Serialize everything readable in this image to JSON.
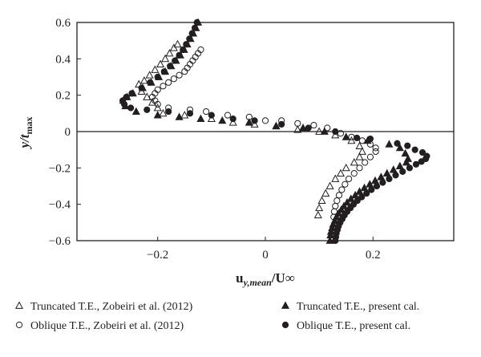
{
  "chart_data": {
    "type": "scatter",
    "xlabel": "u",
    "xlabel_sub": "y,mean",
    "xlabel_tail": "/U",
    "xlabel_inf": "∞",
    "ylabel": "y/t",
    "ylabel_sub": "max",
    "xlim": [
      -0.35,
      0.35
    ],
    "ylim": [
      -0.6,
      0.6
    ],
    "x_ticks": [
      {
        "v": -0.2,
        "label": "−0.2"
      },
      {
        "v": 0,
        "label": "0"
      },
      {
        "v": 0.2,
        "label": "0.2"
      }
    ],
    "y_ticks": [
      {
        "v": 0.6,
        "label": "0.6"
      },
      {
        "v": 0.4,
        "label": "0.4"
      },
      {
        "v": 0.2,
        "label": "0.2"
      },
      {
        "v": 0,
        "label": "0"
      },
      {
        "v": -0.2,
        "label": "−0.2"
      },
      {
        "v": -0.4,
        "label": "−0.4"
      },
      {
        "v": -0.6,
        "label": "−0.6"
      }
    ],
    "grid": false,
    "zero_line": true,
    "legend_placement": "bottom",
    "series": [
      {
        "name": "Truncated T.E., Zobeiri et al. (2012)",
        "marker": "triangle-open",
        "color": "#231f20",
        "points": [
          [
            -0.163,
            0.48
          ],
          [
            -0.17,
            0.46
          ],
          [
            -0.178,
            0.43
          ],
          [
            -0.186,
            0.4
          ],
          [
            -0.195,
            0.37
          ],
          [
            -0.205,
            0.34
          ],
          [
            -0.215,
            0.31
          ],
          [
            -0.225,
            0.28
          ],
          [
            -0.235,
            0.26
          ],
          [
            -0.23,
            0.22
          ],
          [
            -0.22,
            0.19
          ],
          [
            -0.21,
            0.16
          ],
          [
            -0.2,
            0.13
          ],
          [
            -0.19,
            0.1
          ],
          [
            -0.15,
            0.09
          ],
          [
            -0.1,
            0.07
          ],
          [
            -0.06,
            0.05
          ],
          [
            -0.02,
            0.04
          ],
          [
            0.02,
            0.03
          ],
          [
            0.06,
            0.01
          ],
          [
            0.1,
            0.0
          ],
          [
            0.13,
            -0.02
          ],
          [
            0.16,
            -0.05
          ],
          [
            0.175,
            -0.08
          ],
          [
            0.18,
            -0.11
          ],
          [
            0.175,
            -0.14
          ],
          [
            0.165,
            -0.17
          ],
          [
            0.15,
            -0.2
          ],
          [
            0.14,
            -0.23
          ],
          [
            0.13,
            -0.26
          ],
          [
            0.12,
            -0.3
          ],
          [
            0.112,
            -0.34
          ],
          [
            0.105,
            -0.38
          ],
          [
            0.1,
            -0.42
          ],
          [
            0.098,
            -0.46
          ]
        ]
      },
      {
        "name": "Oblique T.E., Zobeiri et al. (2012)",
        "marker": "circle-open",
        "color": "#231f20",
        "points": [
          [
            -0.12,
            0.45
          ],
          [
            -0.125,
            0.43
          ],
          [
            -0.13,
            0.41
          ],
          [
            -0.135,
            0.39
          ],
          [
            -0.14,
            0.37
          ],
          [
            -0.145,
            0.35
          ],
          [
            -0.15,
            0.33
          ],
          [
            -0.16,
            0.31
          ],
          [
            -0.17,
            0.29
          ],
          [
            -0.18,
            0.27
          ],
          [
            -0.19,
            0.25
          ],
          [
            -0.2,
            0.23
          ],
          [
            -0.205,
            0.21
          ],
          [
            -0.21,
            0.19
          ],
          [
            -0.205,
            0.17
          ],
          [
            -0.2,
            0.15
          ],
          [
            -0.18,
            0.13
          ],
          [
            -0.14,
            0.12
          ],
          [
            -0.11,
            0.11
          ],
          [
            -0.07,
            0.09
          ],
          [
            -0.03,
            0.08
          ],
          [
            0.0,
            0.06
          ],
          [
            0.03,
            0.06
          ],
          [
            0.06,
            0.045
          ],
          [
            0.09,
            0.035
          ],
          [
            0.115,
            0.02
          ],
          [
            0.14,
            -0.01
          ],
          [
            0.16,
            -0.03
          ],
          [
            0.18,
            -0.05
          ],
          [
            0.195,
            -0.07
          ],
          [
            0.205,
            -0.09
          ],
          [
            0.205,
            -0.11
          ],
          [
            0.195,
            -0.14
          ],
          [
            0.185,
            -0.17
          ],
          [
            0.175,
            -0.2
          ],
          [
            0.165,
            -0.23
          ],
          [
            0.155,
            -0.26
          ],
          [
            0.148,
            -0.29
          ],
          [
            0.142,
            -0.32
          ],
          [
            0.137,
            -0.35
          ],
          [
            0.133,
            -0.38
          ],
          [
            0.13,
            -0.41
          ],
          [
            0.128,
            -0.44
          ],
          [
            0.127,
            -0.47
          ]
        ]
      },
      {
        "name": "Truncated T.E., present cal.",
        "marker": "triangle-filled",
        "color": "#231f20",
        "points": [
          [
            -0.125,
            0.6
          ],
          [
            -0.129,
            0.57
          ],
          [
            -0.134,
            0.54
          ],
          [
            -0.139,
            0.51
          ],
          [
            -0.145,
            0.48
          ],
          [
            -0.151,
            0.45
          ],
          [
            -0.158,
            0.42
          ],
          [
            -0.166,
            0.39
          ],
          [
            -0.175,
            0.36
          ],
          [
            -0.186,
            0.33
          ],
          [
            -0.198,
            0.3
          ],
          [
            -0.212,
            0.27
          ],
          [
            -0.228,
            0.24
          ],
          [
            -0.246,
            0.21
          ],
          [
            -0.257,
            0.19
          ],
          [
            -0.264,
            0.17
          ],
          [
            -0.26,
            0.14
          ],
          [
            -0.24,
            0.11
          ],
          [
            -0.2,
            0.09
          ],
          [
            -0.16,
            0.08
          ],
          [
            -0.12,
            0.07
          ],
          [
            -0.08,
            0.06
          ],
          [
            -0.03,
            0.05
          ],
          [
            0.02,
            0.03
          ],
          [
            0.07,
            0.02
          ],
          [
            0.11,
            0.0
          ],
          [
            0.15,
            -0.03
          ],
          [
            0.19,
            -0.05
          ],
          [
            0.23,
            -0.07
          ],
          [
            0.25,
            -0.09
          ],
          [
            0.26,
            -0.12
          ],
          [
            0.265,
            -0.15
          ],
          [
            0.262,
            -0.17
          ],
          [
            0.25,
            -0.19
          ],
          [
            0.238,
            -0.21
          ],
          [
            0.226,
            -0.23
          ],
          [
            0.215,
            -0.25
          ],
          [
            0.204,
            -0.27
          ],
          [
            0.194,
            -0.29
          ],
          [
            0.184,
            -0.31
          ],
          [
            0.175,
            -0.33
          ],
          [
            0.167,
            -0.35
          ],
          [
            0.159,
            -0.37
          ],
          [
            0.152,
            -0.39
          ],
          [
            0.146,
            -0.41
          ],
          [
            0.141,
            -0.43
          ],
          [
            0.136,
            -0.45
          ],
          [
            0.132,
            -0.47
          ],
          [
            0.129,
            -0.49
          ],
          [
            0.126,
            -0.51
          ],
          [
            0.124,
            -0.53
          ],
          [
            0.122,
            -0.55
          ],
          [
            0.121,
            -0.57
          ],
          [
            0.12,
            -0.6
          ]
        ]
      },
      {
        "name": "Oblique T.E., present cal.",
        "marker": "circle-filled",
        "color": "#231f20",
        "points": [
          [
            -0.127,
            0.6
          ],
          [
            -0.131,
            0.57
          ],
          [
            -0.136,
            0.54
          ],
          [
            -0.141,
            0.51
          ],
          [
            -0.147,
            0.48
          ],
          [
            -0.153,
            0.45
          ],
          [
            -0.16,
            0.42
          ],
          [
            -0.168,
            0.39
          ],
          [
            -0.177,
            0.36
          ],
          [
            -0.188,
            0.33
          ],
          [
            -0.2,
            0.3
          ],
          [
            -0.214,
            0.27
          ],
          [
            -0.23,
            0.24
          ],
          [
            -0.248,
            0.21
          ],
          [
            -0.258,
            0.19
          ],
          [
            -0.265,
            0.17
          ],
          [
            -0.262,
            0.15
          ],
          [
            -0.25,
            0.13
          ],
          [
            -0.22,
            0.12
          ],
          [
            -0.18,
            0.11
          ],
          [
            -0.14,
            0.1
          ],
          [
            -0.1,
            0.09
          ],
          [
            -0.06,
            0.07
          ],
          [
            -0.02,
            0.06
          ],
          [
            0.03,
            0.04
          ],
          [
            0.08,
            0.02
          ],
          [
            0.13,
            0.0
          ],
          [
            0.17,
            -0.035
          ],
          [
            0.195,
            -0.04
          ],
          [
            0.245,
            -0.065
          ],
          [
            0.264,
            -0.078
          ],
          [
            0.278,
            -0.1
          ],
          [
            0.292,
            -0.115
          ],
          [
            0.3,
            -0.135
          ],
          [
            0.298,
            -0.15
          ],
          [
            0.29,
            -0.165
          ],
          [
            0.28,
            -0.18
          ],
          [
            0.268,
            -0.2
          ],
          [
            0.255,
            -0.22
          ],
          [
            0.242,
            -0.24
          ],
          [
            0.23,
            -0.26
          ],
          [
            0.218,
            -0.28
          ],
          [
            0.207,
            -0.3
          ],
          [
            0.197,
            -0.32
          ],
          [
            0.188,
            -0.34
          ],
          [
            0.179,
            -0.36
          ],
          [
            0.171,
            -0.38
          ],
          [
            0.164,
            -0.4
          ],
          [
            0.158,
            -0.42
          ],
          [
            0.152,
            -0.44
          ],
          [
            0.147,
            -0.46
          ],
          [
            0.143,
            -0.48
          ],
          [
            0.139,
            -0.5
          ],
          [
            0.136,
            -0.52
          ],
          [
            0.134,
            -0.54
          ],
          [
            0.132,
            -0.56
          ],
          [
            0.131,
            -0.58
          ],
          [
            0.13,
            -0.6
          ]
        ]
      }
    ]
  }
}
